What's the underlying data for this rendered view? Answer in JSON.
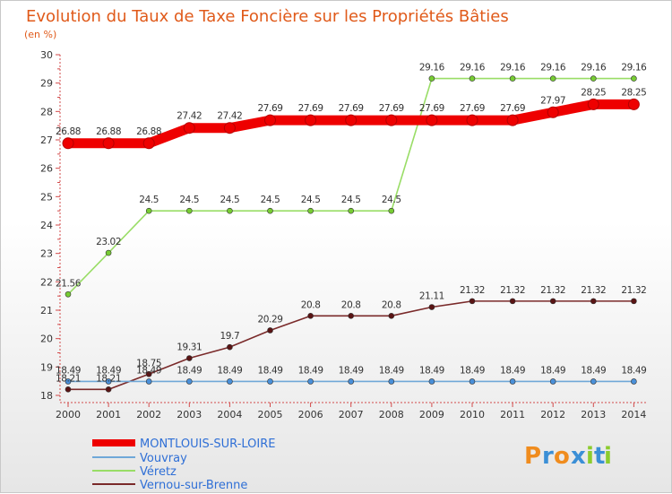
{
  "chart_data": {
    "type": "line",
    "title": "Evolution du Taux de Taxe Foncière sur les Propriétés Bâties",
    "subtitle": "(en %)",
    "xlabel": "",
    "ylabel": "",
    "ylim": [
      18,
      30
    ],
    "yticks": [
      "18",
      "19",
      "20",
      "21",
      "22",
      "23",
      "24",
      "25",
      "26",
      "27",
      "28",
      "29",
      "30"
    ],
    "categories": [
      "2000",
      "2001",
      "2002",
      "2003",
      "2004",
      "2005",
      "2006",
      "2007",
      "2008",
      "2009",
      "2010",
      "2011",
      "2012",
      "2013",
      "2014"
    ],
    "series": [
      {
        "name": "MONTLOUIS-SUR-LOIRE",
        "color": "#ee0000",
        "marker_color": "#ee0000",
        "values": [
          26.88,
          26.88,
          26.88,
          27.42,
          27.42,
          27.69,
          27.69,
          27.69,
          27.69,
          27.69,
          27.69,
          27.69,
          27.97,
          28.25,
          28.25
        ],
        "labels": [
          "26.88",
          "26.88",
          "26.88",
          "27.42",
          "27.42",
          "27.69",
          "27.69",
          "27.69",
          "27.69",
          "27.69",
          "27.69",
          "27.69",
          "27.97",
          "28.25",
          "28.25"
        ]
      },
      {
        "name": "Vouvray",
        "color": "#6fa8d8",
        "marker_color": "#4a90d9",
        "values": [
          18.49,
          18.49,
          18.49,
          18.49,
          18.49,
          18.49,
          18.49,
          18.49,
          18.49,
          18.49,
          18.49,
          18.49,
          18.49,
          18.49,
          18.49
        ],
        "labels": [
          "18.49",
          "18.49",
          "18.49",
          "18.49",
          "18.49",
          "18.49",
          "18.49",
          "18.49",
          "18.49",
          "18.49",
          "18.49",
          "18.49",
          "18.49",
          "18.49",
          "18.49"
        ]
      },
      {
        "name": "Véretz",
        "color": "#99dd66",
        "marker_color": "#77cc33",
        "values": [
          21.56,
          23.02,
          24.5,
          24.5,
          24.5,
          24.5,
          24.5,
          24.5,
          24.5,
          29.16,
          29.16,
          29.16,
          29.16,
          29.16,
          29.16
        ],
        "labels": [
          "21.56",
          "23.02",
          "24.5",
          "24.5",
          "24.5",
          "24.5",
          "24.5",
          "24.5",
          "24.5",
          "29.16",
          "29.16",
          "29.16",
          "29.16",
          "29.16",
          "29.16"
        ]
      },
      {
        "name": "Vernou-sur-Brenne",
        "color": "#7a2a2a",
        "marker_color": "#5a1414",
        "values": [
          18.21,
          18.21,
          18.75,
          19.31,
          19.7,
          20.29,
          20.8,
          20.8,
          20.8,
          21.11,
          21.32,
          21.32,
          21.32,
          21.32,
          21.32
        ],
        "labels": [
          "18.21",
          "18.21",
          "18.75",
          "19.31",
          "19.7",
          "20.29",
          "20.8",
          "20.8",
          "20.8",
          "21.11",
          "21.32",
          "21.32",
          "21.32",
          "21.32",
          "21.32"
        ]
      }
    ],
    "legend": {
      "position": "bottom-left",
      "entries": [
        "MONTLOUIS-SUR-LOIRE",
        "Vouvray",
        "Véretz",
        "Vernou-sur-Brenne"
      ]
    }
  },
  "logo": {
    "text": "Proxiti",
    "letters": [
      "P",
      "r",
      "o",
      "x",
      "i",
      "t",
      "i"
    ],
    "colors": [
      "#f08c1e",
      "#3b8fd6",
      "#f08c1e",
      "#3b8fd6",
      "#8ccc2e",
      "#3b8fd6",
      "#8ccc2e"
    ]
  }
}
